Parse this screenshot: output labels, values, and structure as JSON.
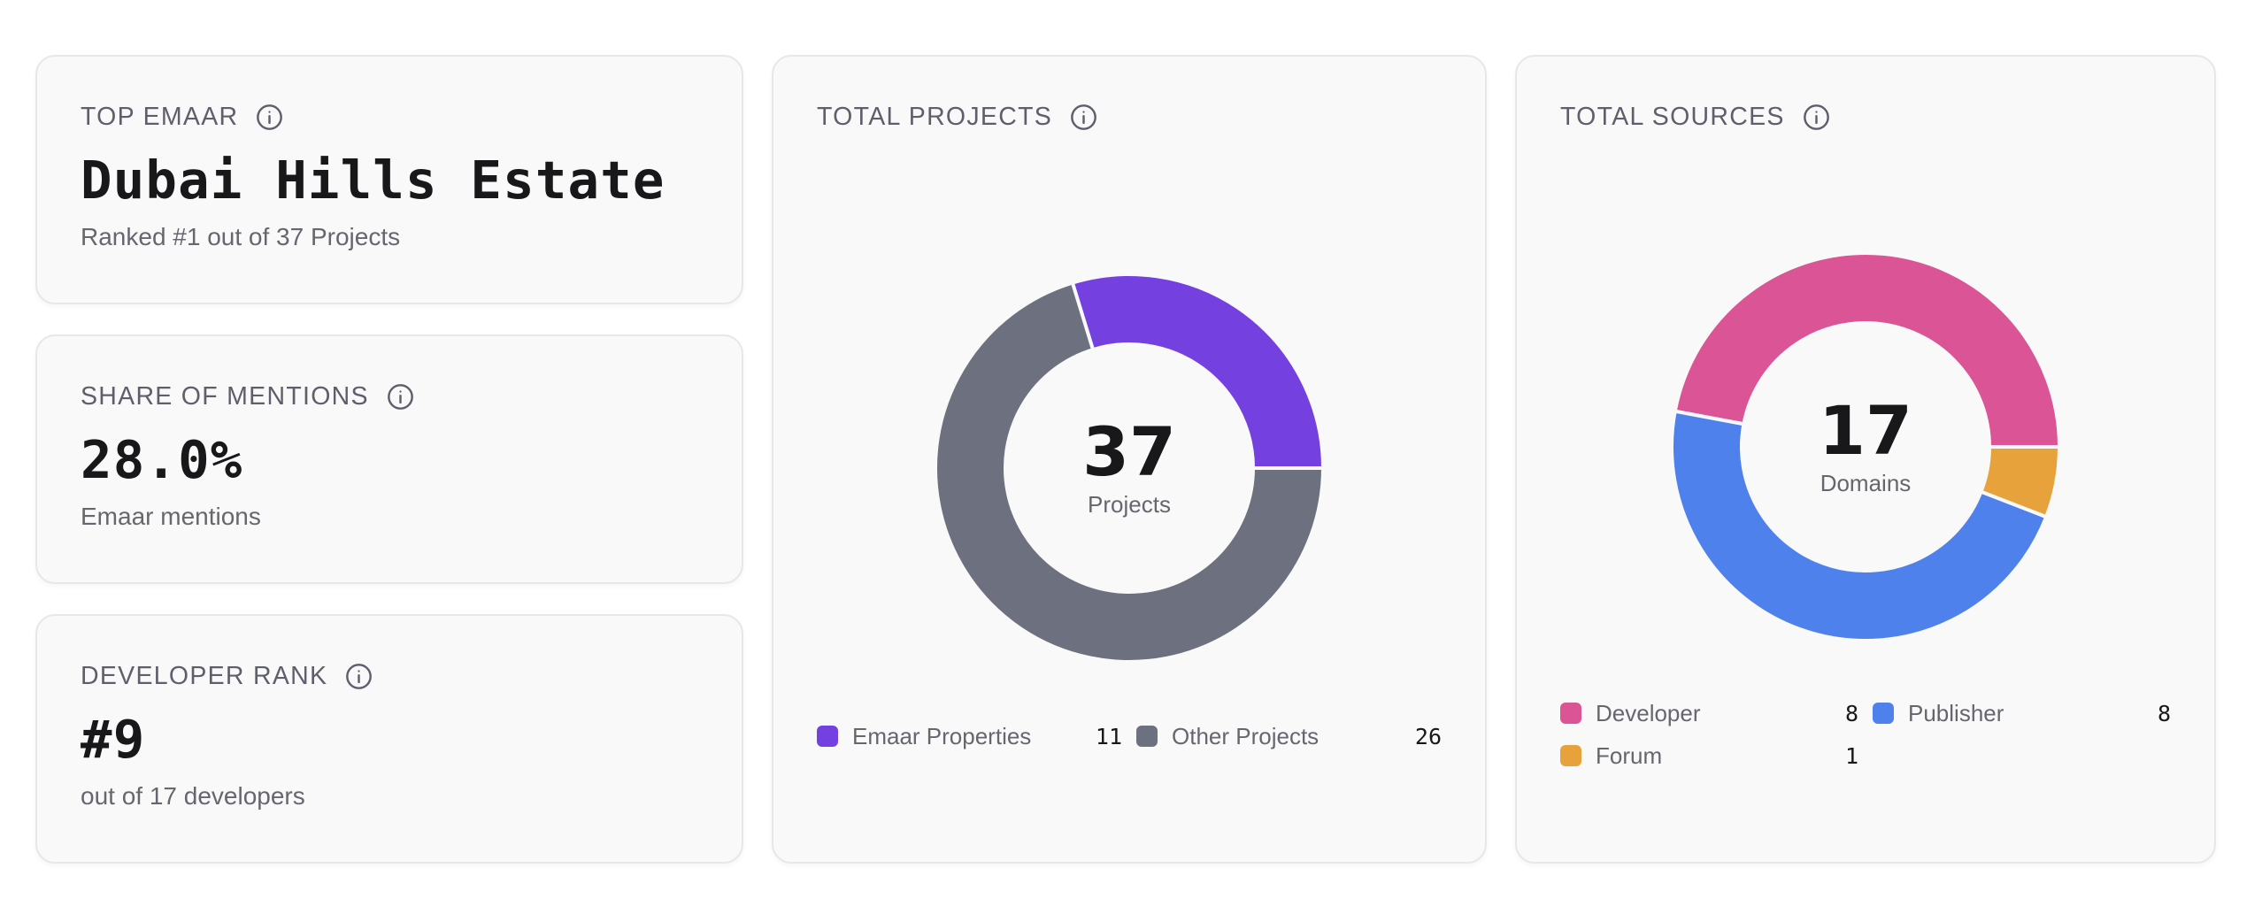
{
  "stats": {
    "top_emaar": {
      "title": "Top Emaar",
      "value": "Dubai Hills Estate",
      "subtitle": "Ranked #1 out of 37 Projects",
      "info_icon": "info-circle-icon"
    },
    "share_of_mentions": {
      "title": "Share of Mentions",
      "value": "28.0%",
      "subtitle": "Emaar mentions",
      "info_icon": "info-circle-icon"
    },
    "developer_rank": {
      "title": "Developer Rank",
      "value": "#9",
      "subtitle": "out of 17 developers",
      "info_icon": "info-circle-icon"
    }
  },
  "projects": {
    "title": "Total Projects",
    "info_icon": "info-circle-icon",
    "center_value": "37",
    "center_caption": "Projects",
    "legend": [
      {
        "label": "Emaar Properties",
        "value": "11"
      },
      {
        "label": "Other Projects",
        "value": "26"
      }
    ]
  },
  "sources": {
    "title": "Total Sources",
    "info_icon": "info-circle-icon",
    "center_value": "17",
    "center_caption": "Domains",
    "legend": [
      {
        "label": "Developer",
        "value": "8"
      },
      {
        "label": "Publisher",
        "value": "8"
      },
      {
        "label": "Forum",
        "value": "1"
      }
    ]
  },
  "chart_data": [
    {
      "type": "pie",
      "variant": "donut",
      "title": "Total Projects",
      "center_label": "37 Projects",
      "categories": [
        "Emaar Properties",
        "Other Projects"
      ],
      "values": [
        11,
        26
      ],
      "colors": [
        "#7540e0",
        "#6d707e"
      ],
      "total": 37,
      "direction": "counter-clockwise",
      "legend_position": "bottom"
    },
    {
      "type": "pie",
      "variant": "donut",
      "title": "Total Sources",
      "center_label": "17 Domains",
      "categories": [
        "Developer",
        "Publisher",
        "Forum"
      ],
      "values": [
        8,
        8,
        1
      ],
      "colors": [
        "#db5495",
        "#4e81eb",
        "#e8a23c"
      ],
      "total": 17,
      "direction": "counter-clockwise",
      "legend_position": "bottom"
    }
  ]
}
